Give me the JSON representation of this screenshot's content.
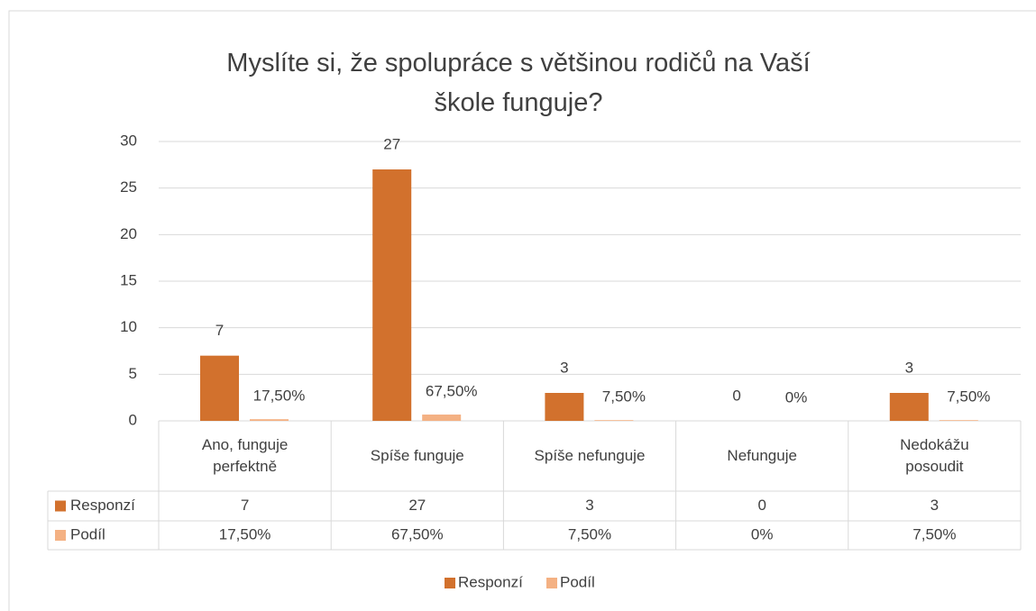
{
  "chart_data": {
    "type": "bar",
    "title": "Myslíte si, že spolupráce s většinou rodičů na Vaší škole funguje?",
    "categories": [
      "Ano, funguje perfektně",
      "Spíše funguje",
      "Spíše nefunguje",
      "Nefunguje",
      "Nedokážu posoudit"
    ],
    "series": [
      {
        "name": "Responzí",
        "color": "#d2712d",
        "values": [
          7,
          27,
          3,
          0,
          3
        ]
      },
      {
        "name": "Podíl",
        "color": "#f4b183",
        "values": [
          0.175,
          0.675,
          0.075,
          0,
          0.075
        ],
        "value_labels": [
          "17,50%",
          "67,50%",
          "7,50%",
          "0%",
          "7,50%"
        ]
      }
    ],
    "ylim": [
      0,
      30
    ],
    "yticks": [
      0,
      5,
      10,
      15,
      20,
      25,
      30
    ],
    "grid": true,
    "legend": "bottom",
    "data_table": true
  }
}
